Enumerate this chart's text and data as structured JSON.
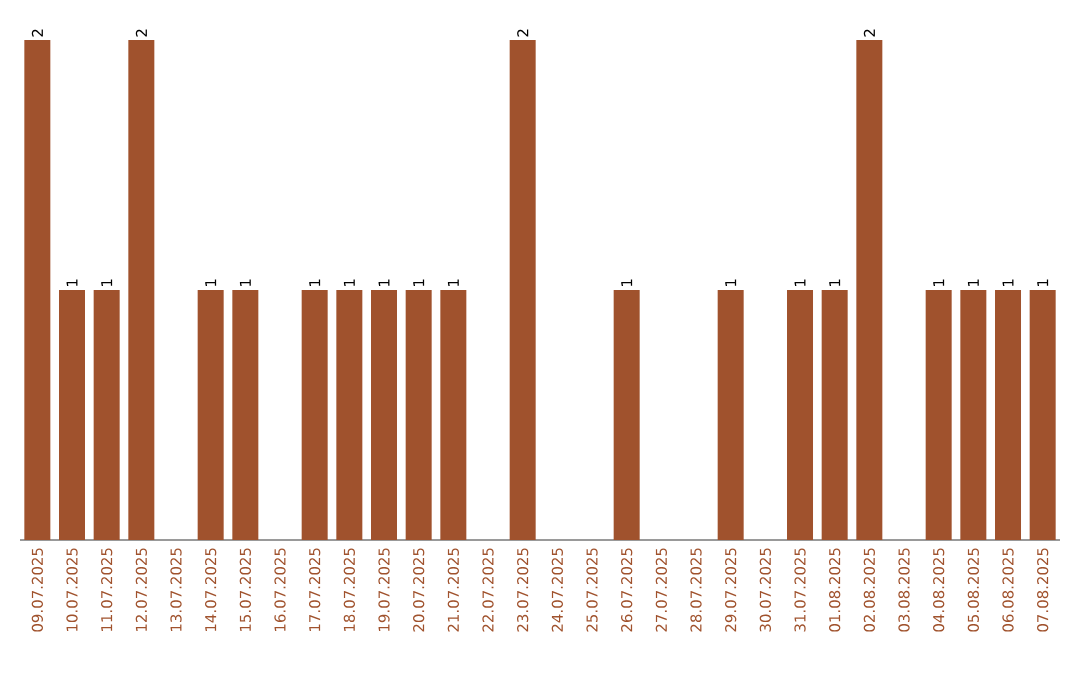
{
  "chart_data": {
    "type": "bar",
    "categories": [
      "09.07.2025",
      "10.07.2025",
      "11.07.2025",
      "12.07.2025",
      "13.07.2025",
      "14.07.2025",
      "15.07.2025",
      "16.07.2025",
      "17.07.2025",
      "18.07.2025",
      "19.07.2025",
      "20.07.2025",
      "21.07.2025",
      "22.07.2025",
      "23.07.2025",
      "24.07.2025",
      "25.07.2025",
      "26.07.2025",
      "27.07.2025",
      "28.07.2025",
      "29.07.2025",
      "30.07.2025",
      "31.07.2025",
      "01.08.2025",
      "02.08.2025",
      "03.08.2025",
      "04.08.2025",
      "05.08.2025",
      "06.08.2025",
      "07.08.2025"
    ],
    "values": [
      2,
      1,
      1,
      2,
      0,
      1,
      1,
      0,
      1,
      1,
      1,
      1,
      1,
      0,
      2,
      0,
      0,
      1,
      0,
      0,
      1,
      0,
      1,
      1,
      2,
      0,
      1,
      1,
      1,
      1
    ],
    "value_labels": [
      "2",
      "1",
      "1",
      "2",
      null,
      "1",
      "1",
      null,
      "1",
      "1",
      "1",
      "1",
      "1",
      null,
      "2",
      null,
      null,
      "1",
      null,
      null,
      "1",
      null,
      "1",
      "1",
      "2",
      null,
      "1",
      "1",
      "1",
      "1"
    ],
    "color": "#a0522d"
  }
}
